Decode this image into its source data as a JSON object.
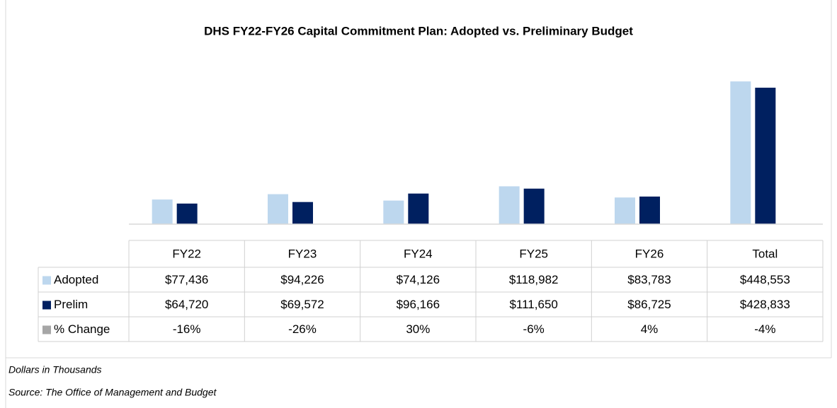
{
  "chart_data": {
    "type": "bar",
    "title": "DHS FY22-FY26 Capital Commitment Plan: Adopted vs. Preliminary Budget",
    "categories": [
      "FY22",
      "FY23",
      "FY24",
      "FY25",
      "FY26",
      "Total"
    ],
    "series": [
      {
        "name": "Adopted",
        "color": "#bdd7ee",
        "values": [
          77436,
          94226,
          74126,
          118982,
          83783,
          448553
        ],
        "value_labels": [
          "$77,436",
          "$94,226",
          "$74,126",
          "$118,982",
          "$83,783",
          "$448,553"
        ]
      },
      {
        "name": "Prelim",
        "color": "#002060",
        "values": [
          64720,
          69572,
          96166,
          111650,
          86725,
          428833
        ],
        "value_labels": [
          "$64,720",
          "$69,572",
          "$96,166",
          "$111,650",
          "$86,725",
          "$428,833"
        ]
      },
      {
        "name": "% Change",
        "color": "#a6a6a6",
        "values": [
          -16,
          -26,
          30,
          -6,
          4,
          -4
        ],
        "value_labels": [
          "-16%",
          "-26%",
          "30%",
          "-6%",
          "4%",
          "-4%"
        ],
        "bars": false
      }
    ],
    "ylim": [
      0,
      500000
    ],
    "notes": [
      "Dollars in Thousands",
      "Source: The Office of Management and Budget"
    ]
  }
}
